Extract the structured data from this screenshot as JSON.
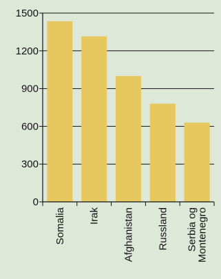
{
  "colors": {
    "background": "#dde8d8",
    "bar": "#e6c85e",
    "axis": "#111111",
    "grid": "#111111"
  },
  "chart_data": {
    "type": "bar",
    "title": "",
    "xlabel": "",
    "ylabel": "",
    "categories": [
      "Somalia",
      "Irak",
      "Afghanistan",
      "Russland",
      "Serbia og Montenegro"
    ],
    "category_label_lines": [
      [
        "Somalia"
      ],
      [
        "Irak"
      ],
      [
        "Afghanistan"
      ],
      [
        "Russland"
      ],
      [
        "Serbia og",
        "Montenegro"
      ]
    ],
    "values": [
      1435,
      1315,
      1000,
      780,
      630
    ],
    "ylim": [
      0,
      1500
    ],
    "yticks": [
      0,
      300,
      600,
      900,
      1200,
      1500
    ],
    "grid": true,
    "legend": "none"
  }
}
